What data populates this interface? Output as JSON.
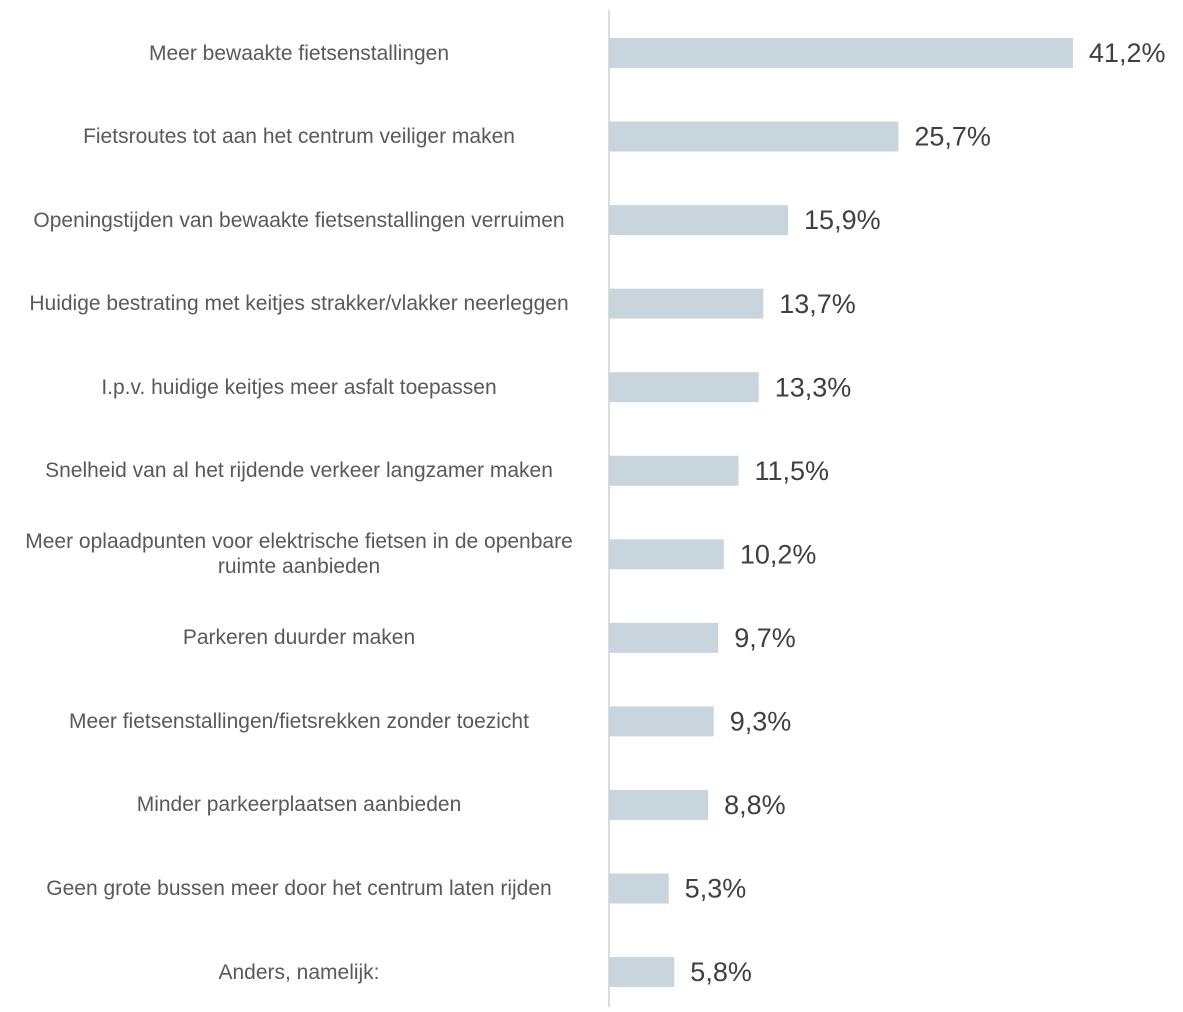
{
  "chart_data": {
    "type": "bar",
    "orientation": "horizontal",
    "categories": [
      "Meer bewaakte fietsenstallingen",
      "Fietsroutes tot aan het centrum veiliger maken",
      "Openingstijden van bewaakte fietsenstallingen verruimen",
      "Huidige bestrating met keitjes strakker/vlakker neerleggen",
      "I.p.v. huidige keitjes meer asfalt toepassen",
      "Snelheid van al het rijdende verkeer langzamer maken",
      "Meer oplaadpunten voor elektrische fietsen in de openbare ruimte aanbieden",
      "Parkeren duurder maken",
      "Meer fietsenstallingen/fietsrekken zonder toezicht",
      "Minder parkeerplaatsen aanbieden",
      "Geen grote bussen meer door het centrum laten rijden",
      "Anders, namelijk:"
    ],
    "values": [
      41.2,
      25.7,
      15.9,
      13.7,
      13.3,
      11.5,
      10.2,
      9.7,
      9.3,
      8.8,
      5.3,
      5.8
    ],
    "value_labels": [
      "41,2%",
      "25,7%",
      "15,9%",
      "13,7%",
      "13,3%",
      "11,5%",
      "10,2%",
      "9,7%",
      "9,3%",
      "8,8%",
      "5,3%",
      "5,8%"
    ],
    "color": "#c9d5dc"
  }
}
